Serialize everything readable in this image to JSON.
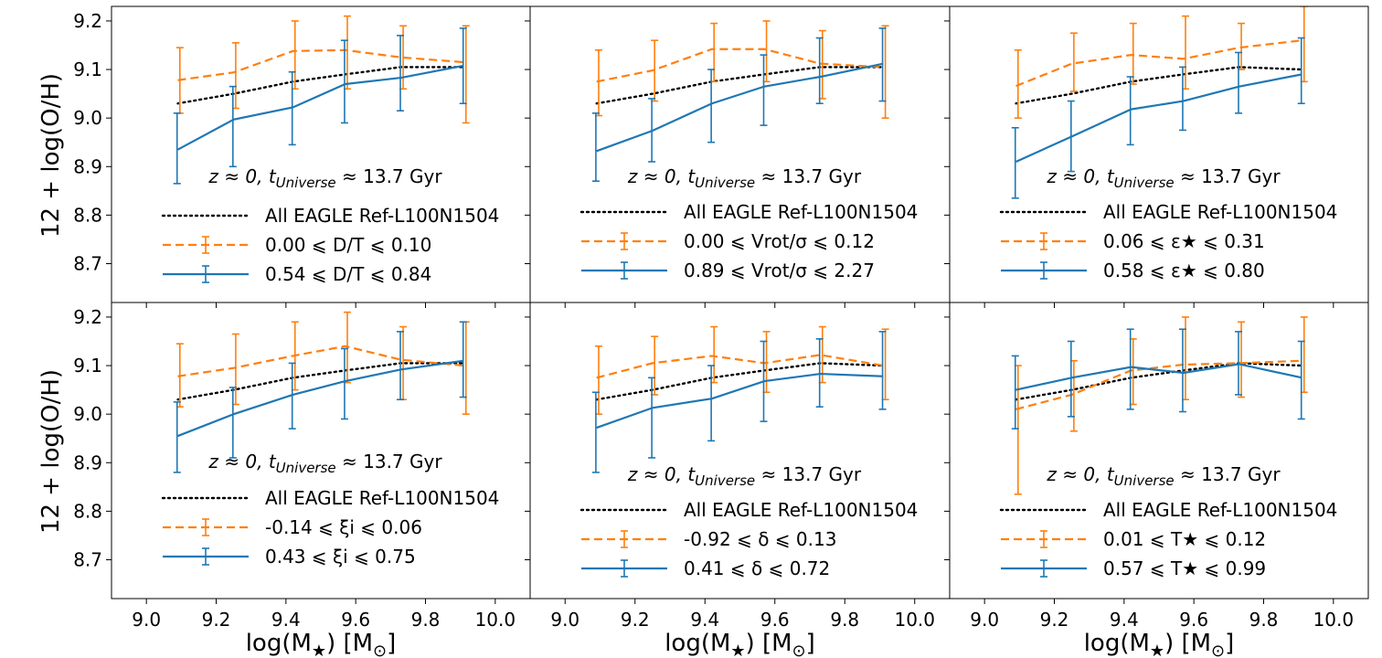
{
  "colors": {
    "orange": "#ff7f0e",
    "blue": "#1f77b4",
    "black": "#000000"
  },
  "figure": {
    "xlabel_main": "log(M",
    "xlabel_sub": "★",
    "xlabel_rest": ") [M",
    "xlabel_sun": "⊙",
    "xlabel_end": "]",
    "ylabel": "12 + log(O/H)",
    "xlim": [
      8.9,
      10.1
    ],
    "ylim": [
      8.62,
      9.23
    ],
    "xticks": [
      "9.0",
      "9.2",
      "9.4",
      "9.6",
      "9.8",
      "10.0"
    ],
    "yticks": [
      "8.7",
      "8.8",
      "8.9",
      "9.0",
      "9.1",
      "9.2"
    ]
  },
  "annotation": {
    "z": "z ≈ 0,",
    "t": "t",
    "t_sub": "Universe",
    "rest": " ≈ 13.7 Gyr"
  },
  "chart_data": [
    {
      "type": "line",
      "panel": "D/T",
      "x": [
        9.09,
        9.25,
        9.42,
        9.57,
        9.73,
        9.91
      ],
      "series": [
        {
          "name": "All EAGLE Ref-L100N1504",
          "style": "dotted",
          "color": "black",
          "values": [
            9.03,
            9.05,
            9.075,
            9.09,
            9.105,
            9.105
          ]
        },
        {
          "name": "0.00 ⩽ D/T ⩽ 0.10",
          "style": "dashed",
          "color": "orange",
          "values": [
            9.078,
            9.094,
            9.138,
            9.14,
            9.125,
            9.115
          ],
          "err_low": [
            9.01,
            9.02,
            9.06,
            9.06,
            9.06,
            8.99
          ],
          "err_high": [
            9.145,
            9.155,
            9.2,
            9.21,
            9.19,
            9.19
          ]
        },
        {
          "name": "0.54 ⩽ D/T ⩽ 0.84",
          "style": "solid",
          "color": "blue",
          "values": [
            8.935,
            8.997,
            9.022,
            9.07,
            9.083,
            9.108
          ],
          "err_low": [
            8.865,
            8.9,
            8.945,
            8.99,
            9.015,
            9.03
          ],
          "err_high": [
            9.01,
            9.065,
            9.095,
            9.16,
            9.17,
            9.185
          ]
        }
      ],
      "legend": {
        "placement": "lower-center",
        "entries": [
          "All EAGLE Ref-L100N1504",
          "0.00 ⩽ D/T ⩽ 0.10",
          "0.54 ⩽ D/T ⩽ 0.84"
        ]
      }
    },
    {
      "type": "line",
      "panel": "Vrot/sigma",
      "x": [
        9.09,
        9.25,
        9.42,
        9.57,
        9.73,
        9.91
      ],
      "series": [
        {
          "name": "All EAGLE Ref-L100N1504",
          "style": "dotted",
          "color": "black",
          "values": [
            9.03,
            9.05,
            9.075,
            9.09,
            9.105,
            9.105
          ]
        },
        {
          "name": "0.00 ⩽ Vrot/σ ⩽ 0.12",
          "style": "dashed",
          "color": "orange",
          "values": [
            9.075,
            9.098,
            9.142,
            9.142,
            9.112,
            9.105
          ],
          "err_low": [
            9.005,
            9.035,
            9.075,
            9.075,
            9.04,
            9.0
          ],
          "err_high": [
            9.14,
            9.16,
            9.195,
            9.2,
            9.18,
            9.19
          ]
        },
        {
          "name": "0.89 ⩽ Vrot/σ ⩽ 2.27",
          "style": "solid",
          "color": "blue",
          "values": [
            8.932,
            8.974,
            9.03,
            9.065,
            9.085,
            9.112
          ],
          "err_low": [
            8.87,
            8.91,
            8.95,
            8.985,
            9.03,
            9.035
          ],
          "err_high": [
            9.01,
            9.04,
            9.1,
            9.13,
            9.165,
            9.185
          ]
        }
      ],
      "legend": {
        "placement": "lower-center",
        "entries": [
          "All EAGLE Ref-L100N1504",
          "0.00 ⩽ Vrot/σ ⩽ 0.12",
          "0.89 ⩽ Vrot/σ ⩽ 2.27"
        ]
      }
    },
    {
      "type": "line",
      "panel": "epsilon",
      "x": [
        9.09,
        9.25,
        9.42,
        9.57,
        9.73,
        9.91
      ],
      "series": [
        {
          "name": "All EAGLE Ref-L100N1504",
          "style": "dotted",
          "color": "black",
          "values": [
            9.03,
            9.05,
            9.075,
            9.09,
            9.105,
            9.1
          ]
        },
        {
          "name": "0.06 ⩽ ε★ ⩽ 0.31",
          "style": "dashed",
          "color": "orange",
          "values": [
            9.066,
            9.112,
            9.13,
            9.122,
            9.145,
            9.16
          ],
          "err_low": [
            9.0,
            9.055,
            9.07,
            9.06,
            9.1,
            9.075
          ],
          "err_high": [
            9.14,
            9.175,
            9.195,
            9.21,
            9.195,
            9.23
          ]
        },
        {
          "name": "0.58 ⩽ ε★ ⩽ 0.80",
          "style": "solid",
          "color": "blue",
          "values": [
            8.91,
            8.962,
            9.018,
            9.035,
            9.065,
            9.09
          ],
          "err_low": [
            8.835,
            8.89,
            8.945,
            8.975,
            9.01,
            9.03
          ],
          "err_high": [
            8.98,
            9.035,
            9.085,
            9.105,
            9.135,
            9.165
          ]
        }
      ],
      "legend": {
        "placement": "lower-center",
        "entries": [
          "All EAGLE Ref-L100N1504",
          "0.06 ⩽ ε★ ⩽ 0.31",
          "0.58 ⩽ ε★ ⩽ 0.80"
        ]
      }
    },
    {
      "type": "line",
      "panel": "xi",
      "x": [
        9.09,
        9.25,
        9.42,
        9.57,
        9.73,
        9.91
      ],
      "series": [
        {
          "name": "All EAGLE Ref-L100N1504",
          "style": "dotted",
          "color": "black",
          "values": [
            9.03,
            9.05,
            9.075,
            9.09,
            9.105,
            9.105
          ]
        },
        {
          "name": "-0.14 ⩽ ξi ⩽ 0.06",
          "style": "dashed",
          "color": "orange",
          "values": [
            9.078,
            9.095,
            9.12,
            9.14,
            9.112,
            9.1
          ],
          "err_low": [
            9.015,
            9.02,
            9.05,
            9.065,
            9.03,
            9.0
          ],
          "err_high": [
            9.145,
            9.165,
            9.19,
            9.21,
            9.18,
            9.19
          ]
        },
        {
          "name": "0.43 ⩽ ξi ⩽ 0.75",
          "style": "solid",
          "color": "blue",
          "values": [
            8.955,
            9.0,
            9.04,
            9.068,
            9.092,
            9.11
          ],
          "err_low": [
            8.88,
            8.91,
            8.97,
            8.99,
            9.03,
            9.035
          ],
          "err_high": [
            9.025,
            9.055,
            9.105,
            9.135,
            9.17,
            9.19
          ]
        }
      ],
      "legend": {
        "placement": "lower-center",
        "entries": [
          "All EAGLE Ref-L100N1504",
          "-0.14 ⩽ ξi ⩽ 0.06",
          "0.43 ⩽ ξi ⩽ 0.75"
        ]
      }
    },
    {
      "type": "line",
      "panel": "delta",
      "x": [
        9.09,
        9.25,
        9.42,
        9.57,
        9.73,
        9.91
      ],
      "series": [
        {
          "name": "All EAGLE Ref-L100N1504",
          "style": "dotted",
          "color": "black",
          "values": [
            9.03,
            9.05,
            9.075,
            9.09,
            9.105,
            9.1
          ]
        },
        {
          "name": "-0.92 ⩽ δ ⩽ 0.13",
          "style": "dashed",
          "color": "orange",
          "values": [
            9.075,
            9.105,
            9.12,
            9.105,
            9.122,
            9.1
          ],
          "err_low": [
            9.0,
            9.04,
            9.065,
            9.045,
            9.065,
            9.03
          ],
          "err_high": [
            9.14,
            9.16,
            9.18,
            9.17,
            9.18,
            9.175
          ]
        },
        {
          "name": "0.41 ⩽ δ ⩽ 0.72",
          "style": "solid",
          "color": "blue",
          "values": [
            8.972,
            9.013,
            9.032,
            9.068,
            9.083,
            9.078
          ],
          "err_low": [
            8.88,
            8.91,
            8.945,
            8.985,
            9.015,
            9.01
          ],
          "err_high": [
            9.045,
            9.075,
            9.1,
            9.15,
            9.155,
            9.17
          ]
        }
      ],
      "legend": {
        "placement": "lower-center",
        "entries": [
          "All EAGLE Ref-L100N1504",
          "-0.92 ⩽ δ ⩽ 0.13",
          "0.41 ⩽ δ ⩽ 0.72"
        ]
      }
    },
    {
      "type": "line",
      "panel": "T",
      "x": [
        9.09,
        9.25,
        9.42,
        9.57,
        9.73,
        9.91
      ],
      "series": [
        {
          "name": "All EAGLE Ref-L100N1504",
          "style": "dotted",
          "color": "black",
          "values": [
            9.03,
            9.05,
            9.075,
            9.09,
            9.105,
            9.1
          ]
        },
        {
          "name": "0.01 ⩽ T★ ⩽ 0.12",
          "style": "dashed",
          "color": "orange",
          "values": [
            9.01,
            9.04,
            9.09,
            9.102,
            9.105,
            9.11
          ],
          "err_low": [
            8.835,
            8.965,
            9.02,
            9.03,
            9.035,
            9.045
          ],
          "err_high": [
            9.1,
            9.11,
            9.155,
            9.2,
            9.19,
            9.2
          ]
        },
        {
          "name": "0.57 ⩽ T★ ⩽ 0.99",
          "style": "solid",
          "color": "blue",
          "values": [
            9.05,
            9.075,
            9.097,
            9.085,
            9.103,
            9.075
          ],
          "err_low": [
            8.97,
            8.995,
            9.01,
            9.005,
            9.04,
            8.99
          ],
          "err_high": [
            9.12,
            9.15,
            9.175,
            9.175,
            9.17,
            9.15
          ]
        }
      ],
      "legend": {
        "placement": "lower-center",
        "entries": [
          "All EAGLE Ref-L100N1504",
          "0.01 ⩽ T★ ⩽ 0.12",
          "0.57 ⩽ T★ ⩽ 0.99"
        ]
      }
    }
  ]
}
